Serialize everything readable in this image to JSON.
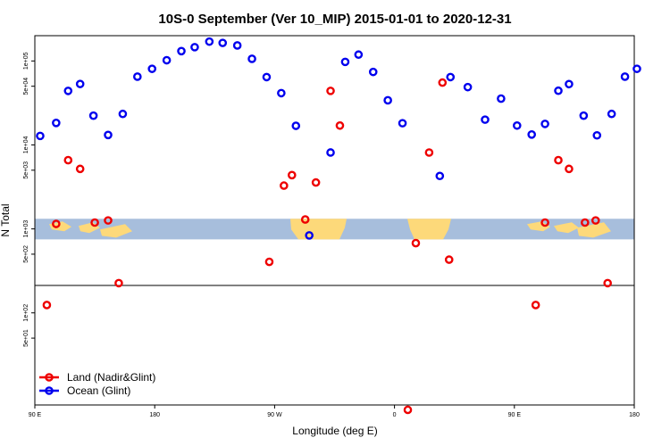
{
  "chart_data": {
    "type": "scatter",
    "title": "10S-0 September (Ver 10_MIP)   2015-01-01 to 2020-12-31",
    "xlabel": "Longitude (deg E)",
    "ylabel": "N Total",
    "x_scale": "longitude, 90E to 180 (wrapping)",
    "xlim": [
      90,
      540
    ],
    "x_ticks": [
      {
        "value": 90,
        "label": "90 E"
      },
      {
        "value": 180,
        "label": "180"
      },
      {
        "value": 270,
        "label": "90 W"
      },
      {
        "value": 360,
        "label": "0"
      },
      {
        "value": 450,
        "label": "90 E"
      },
      {
        "value": 540,
        "label": "180"
      }
    ],
    "y_scale": "log",
    "ylim": [
      8,
      200000
    ],
    "y_ticks": [
      {
        "value": 50,
        "label": "5e+01"
      },
      {
        "value": 100,
        "label": "1e+02"
      },
      {
        "value": 500,
        "label": "5e+02"
      },
      {
        "value": 1000,
        "label": "1e+03"
      },
      {
        "value": 5000,
        "label": "5e+03"
      },
      {
        "value": 10000,
        "label": "1e+04"
      },
      {
        "value": 50000,
        "label": "5e+04"
      },
      {
        "value": 100000,
        "label": "1e+05"
      }
    ],
    "legend_position": "bottom-left",
    "background_map_band": {
      "y_range": [
        750,
        1320
      ],
      "ocean_color": "#a7bedc",
      "land_color": "#fdd97a"
    },
    "series": [
      {
        "name": "Land (Nadir&Glint)",
        "color": "#ee0000",
        "points": [
          [
            99,
            124
          ],
          [
            106,
            1146
          ],
          [
            115,
            6582
          ],
          [
            124,
            5183
          ],
          [
            135,
            1190
          ],
          [
            145,
            1261
          ],
          [
            153,
            226
          ],
          [
            266,
            405
          ],
          [
            277,
            3277
          ],
          [
            283,
            4370
          ],
          [
            293,
            1294
          ],
          [
            301,
            3569
          ],
          [
            312,
            44016
          ],
          [
            319,
            17002
          ],
          [
            370,
            7
          ],
          [
            376,
            677
          ],
          [
            386,
            8118
          ],
          [
            396,
            55244
          ],
          [
            401,
            430
          ],
          [
            466,
            124
          ],
          [
            473,
            1190
          ],
          [
            483,
            6582
          ],
          [
            491,
            5183
          ],
          [
            503,
            1190
          ],
          [
            511,
            1261
          ],
          [
            520,
            226
          ]
        ]
      },
      {
        "name": "Ocean (Glint)",
        "color": "#0000ee",
        "points": [
          [
            94,
            12800
          ],
          [
            106,
            18280
          ],
          [
            115,
            44000
          ],
          [
            124,
            53200
          ],
          [
            134,
            22300
          ],
          [
            145,
            13140
          ],
          [
            156,
            23400
          ],
          [
            167,
            65000
          ],
          [
            178,
            80600
          ],
          [
            189,
            102000
          ],
          [
            200,
            131000
          ],
          [
            210,
            146000
          ],
          [
            221,
            170000
          ],
          [
            231,
            164000
          ],
          [
            242,
            153000
          ],
          [
            253,
            106000
          ],
          [
            264,
            64300
          ],
          [
            275,
            41400
          ],
          [
            286,
            16900
          ],
          [
            296,
            836
          ],
          [
            312,
            8120
          ],
          [
            323,
            97500
          ],
          [
            333,
            119000
          ],
          [
            344,
            74000
          ],
          [
            355,
            34000
          ],
          [
            366,
            18140
          ],
          [
            394,
            4270
          ],
          [
            402,
            64300
          ],
          [
            415,
            48800
          ],
          [
            428,
            20000
          ],
          [
            440,
            35600
          ],
          [
            452,
            17000
          ],
          [
            463,
            13300
          ],
          [
            473,
            17800
          ],
          [
            483,
            44200
          ],
          [
            491,
            53000
          ],
          [
            502,
            22300
          ],
          [
            512,
            13000
          ],
          [
            523,
            23400
          ],
          [
            533,
            65000
          ],
          [
            542,
            80600
          ]
        ]
      }
    ]
  }
}
